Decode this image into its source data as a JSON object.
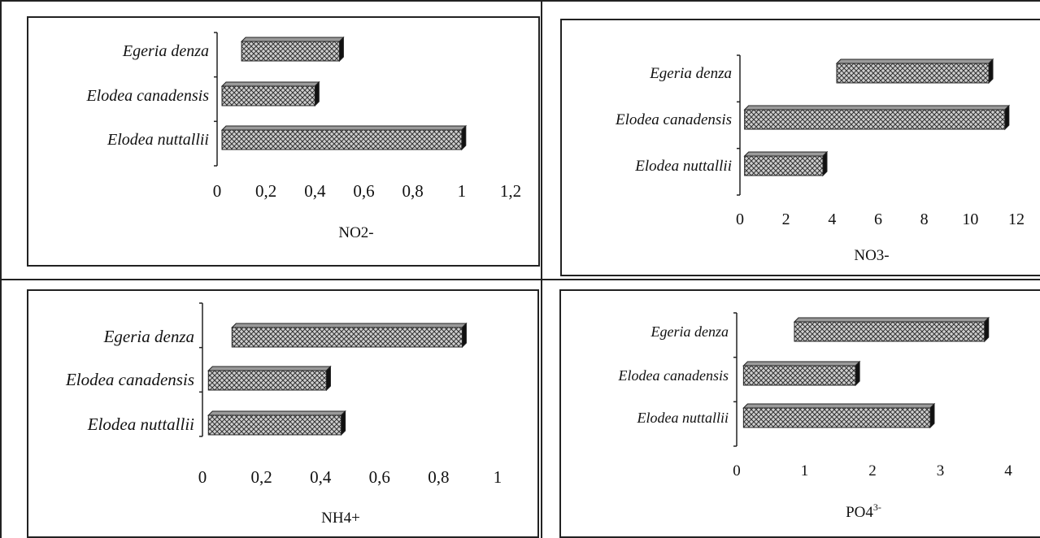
{
  "chart_data": [
    {
      "type": "bar",
      "orientation": "horizontal",
      "categories": [
        "Egeria denza",
        "Elodea canadensis",
        "Elodea nuttallii"
      ],
      "ranges": [
        [
          0.1,
          0.5
        ],
        [
          0.02,
          0.4
        ],
        [
          0.02,
          1.0
        ]
      ],
      "xlabel": "NO2-",
      "xlim": [
        0,
        1.2
      ],
      "xticks": [
        "0",
        "0,2",
        "0,4",
        "0,6",
        "0,8",
        "1",
        "1,2"
      ],
      "grid": false
    },
    {
      "type": "bar",
      "orientation": "horizontal",
      "categories": [
        "Egeria denza",
        "Elodea canadensis",
        "Elodea nuttallii"
      ],
      "ranges": [
        [
          4.2,
          10.8
        ],
        [
          0.2,
          11.5
        ],
        [
          0.2,
          3.6
        ]
      ],
      "xlabel": "NO3-",
      "xlim": [
        0,
        12
      ],
      "xticks": [
        "0",
        "2",
        "4",
        "6",
        "8",
        "10",
        "12"
      ],
      "grid": false
    },
    {
      "type": "bar",
      "orientation": "horizontal",
      "categories": [
        "Egeria denza",
        "Elodea canadensis",
        "Elodea nuttallii"
      ],
      "ranges": [
        [
          0.1,
          0.88
        ],
        [
          0.02,
          0.42
        ],
        [
          0.02,
          0.47
        ]
      ],
      "xlabel": "NH4+",
      "xlim": [
        0,
        1
      ],
      "xticks": [
        "0",
        "0,2",
        "0,4",
        "0,6",
        "0,8",
        "1"
      ],
      "grid": false
    },
    {
      "type": "bar",
      "orientation": "horizontal",
      "categories": [
        "Egeria denza",
        "Elodea canadensis",
        "Elodea nuttallii"
      ],
      "ranges": [
        [
          0.85,
          3.65
        ],
        [
          0.1,
          1.75
        ],
        [
          0.1,
          2.85
        ]
      ],
      "xlabel": "PO4",
      "xlabel_superscript": "3-",
      "xlim": [
        0,
        4
      ],
      "xticks": [
        "0",
        "1",
        "2",
        "3",
        "4"
      ],
      "grid": false
    }
  ]
}
